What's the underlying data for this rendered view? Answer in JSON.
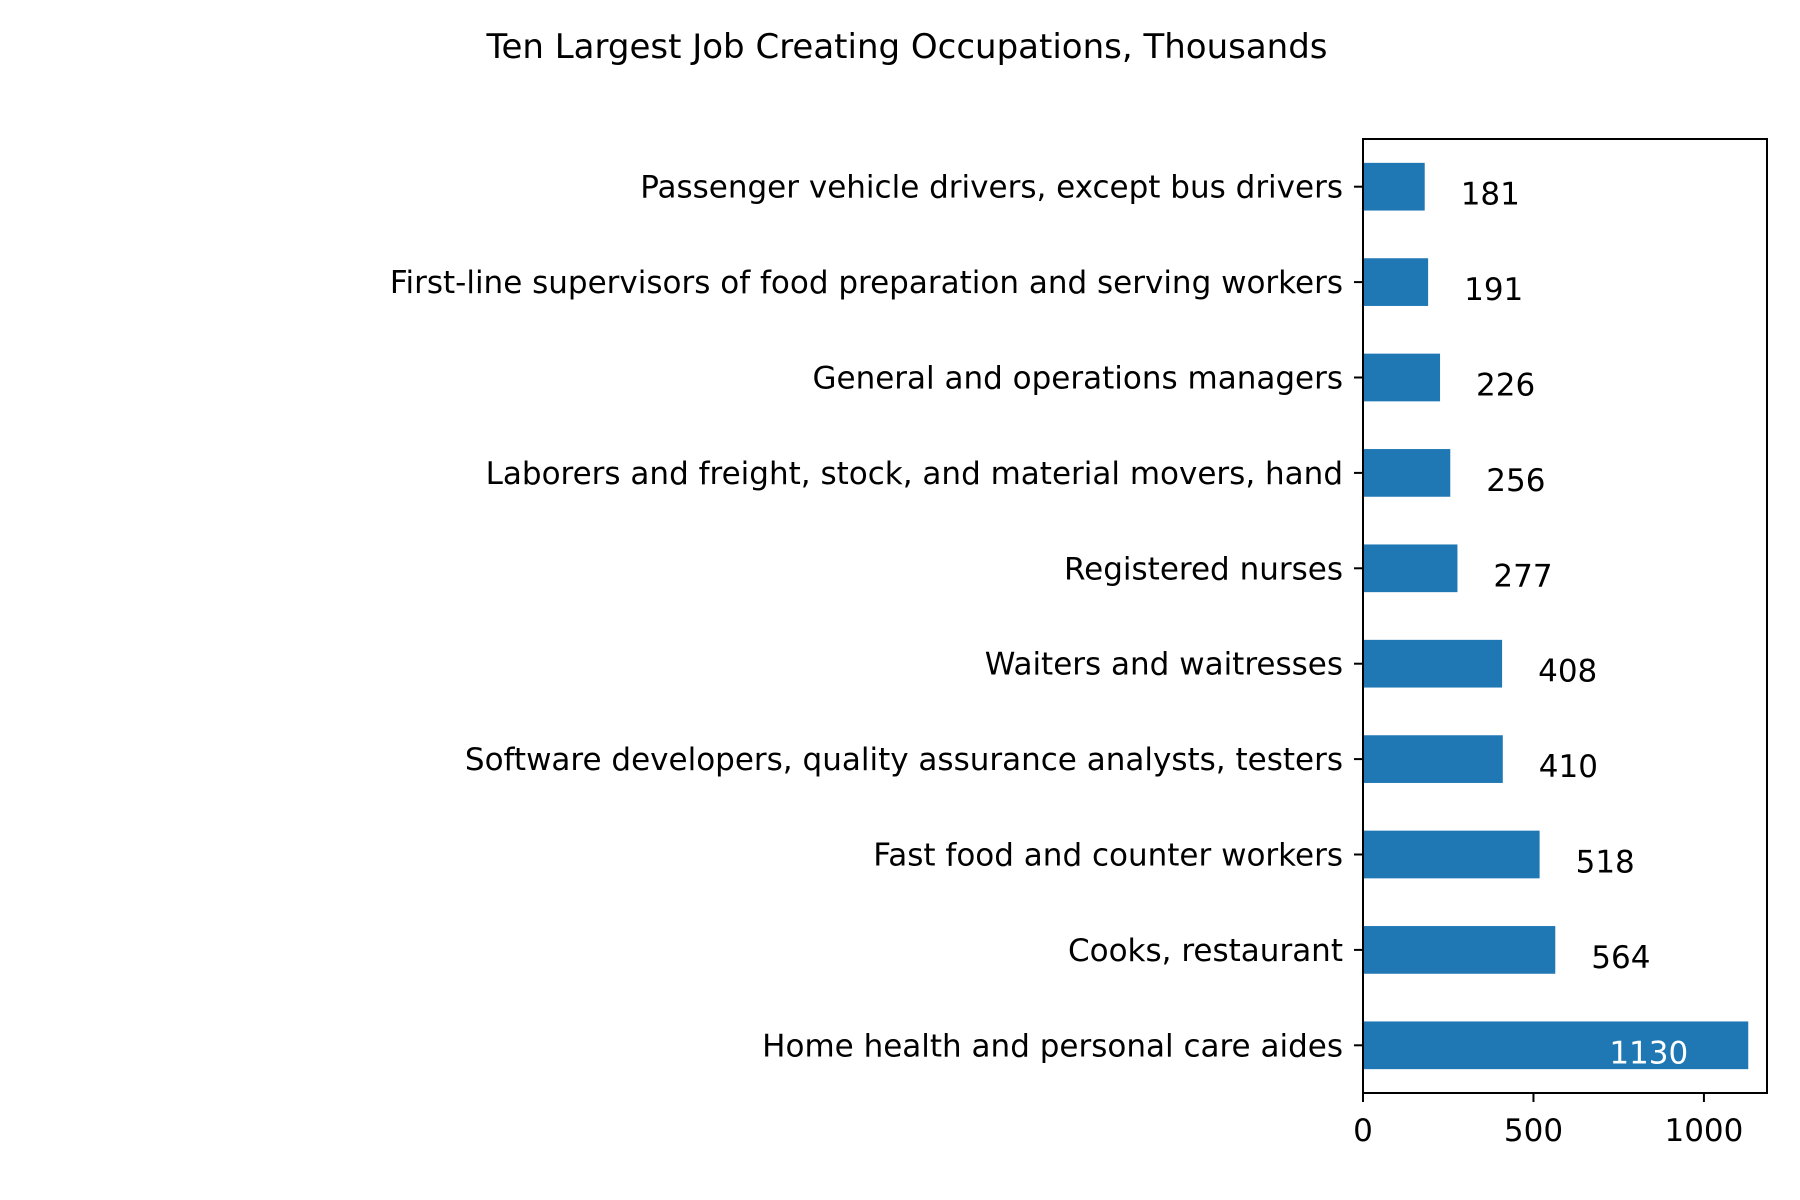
{
  "chart_data": {
    "type": "bar",
    "orientation": "horizontal",
    "title": "Ten Largest Job Creating Occupations, Thousands",
    "xlabel": "",
    "ylabel": "",
    "xlim": [
      0,
      1185
    ],
    "xticks": [
      0,
      500,
      1000
    ],
    "grid": false,
    "bar_color": "#1f77b4",
    "categories": [
      "Passenger vehicle drivers, except bus drivers",
      "First-line supervisors of food preparation and serving workers",
      "General and operations managers",
      "Laborers and freight, stock, and material movers, hand",
      "Registered nurses",
      "Waiters and waitresses",
      "Software developers, quality assurance analysts, testers",
      "Fast food and counter workers",
      "Cooks, restaurant",
      "Home health and personal care aides"
    ],
    "values": [
      181,
      191,
      226,
      256,
      277,
      408,
      410,
      518,
      564,
      1130
    ],
    "data_labels": [
      "181",
      "191",
      "226",
      "256",
      "277",
      "408",
      "410",
      "518",
      "564",
      "1130"
    ]
  }
}
